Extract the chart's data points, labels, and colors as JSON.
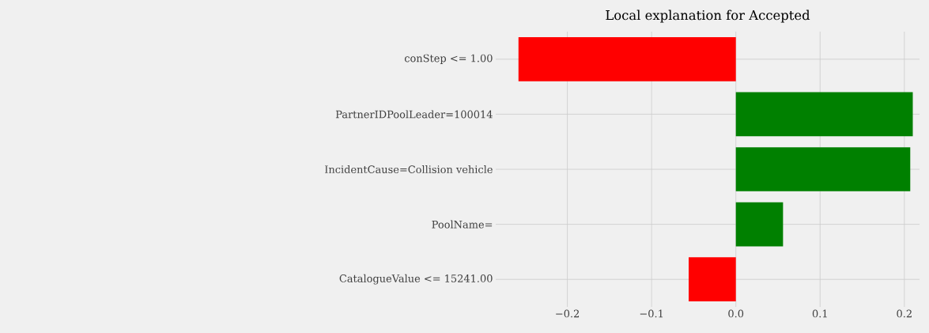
{
  "chart_data": {
    "type": "bar",
    "orientation": "horizontal",
    "title": "Local explanation for Accepted",
    "categories": [
      "conStep <= 1.00",
      "PartnerIDPoolLeader=100014",
      "IncidentCause=Collision vehicle",
      "PoolName=",
      "CatalogueValue <= 15241.00"
    ],
    "values": [
      -0.258,
      0.21,
      0.207,
      0.056,
      -0.056
    ],
    "colors": [
      "#ff0000",
      "#008000",
      "#008000",
      "#008000",
      "#ff0000"
    ],
    "xlim": [
      -0.285,
      0.218
    ],
    "xticks": [
      {
        "value": -0.2,
        "label": "−0.2"
      },
      {
        "value": -0.1,
        "label": "−0.1"
      },
      {
        "value": 0.0,
        "label": "0.0"
      },
      {
        "value": 0.1,
        "label": "0.1"
      },
      {
        "value": 0.2,
        "label": "0.2"
      }
    ],
    "grid": true
  }
}
